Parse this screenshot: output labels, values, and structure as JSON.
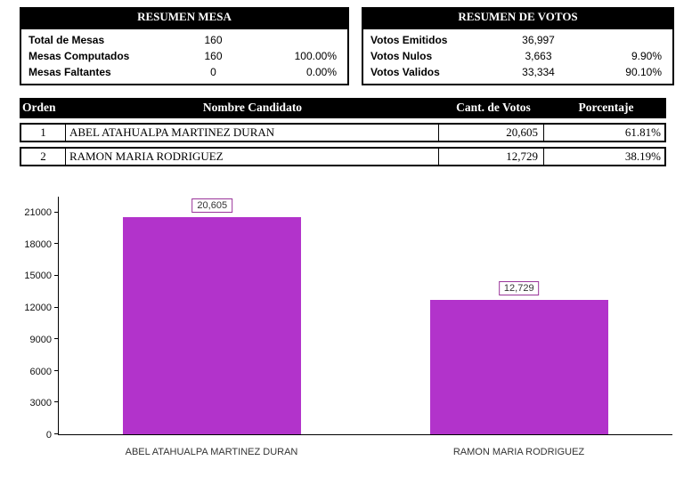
{
  "resumen_mesa": {
    "title": "RESUMEN MESA",
    "rows": [
      {
        "label": "Total  de Mesas",
        "value": "160",
        "pct": ""
      },
      {
        "label": "Mesas Computados",
        "value": "160",
        "pct": "100.00%"
      },
      {
        "label": "Mesas Faltantes",
        "value": "0",
        "pct": "0.00%"
      }
    ]
  },
  "resumen_votos": {
    "title": "RESUMEN DE VOTOS",
    "rows": [
      {
        "label": "Votos Emitidos",
        "value": "36,997",
        "pct": ""
      },
      {
        "label": "Votos Nulos",
        "value": "3,663",
        "pct": "9.90%"
      },
      {
        "label": "Votos Validos",
        "value": "33,334",
        "pct": "90.10%"
      }
    ]
  },
  "candidates": {
    "headers": [
      "Orden",
      "Nombre Candidato",
      "Cant. de Votos",
      "Porcentaje"
    ],
    "rows": [
      {
        "orden": "1",
        "name": "ABEL ATAHUALPA MARTINEZ DURAN",
        "votes": "20,605",
        "pct": "61.81%"
      },
      {
        "orden": "2",
        "name": "RAMON MARIA RODRIGUEZ",
        "votes": "12,729",
        "pct": "38.19%"
      }
    ]
  },
  "chart_data": {
    "type": "bar",
    "title": "",
    "categories": [
      "ABEL ATAHUALPA MARTINEZ DURAN",
      "RAMON MARIA RODRIGUEZ"
    ],
    "values": [
      20605,
      12729
    ],
    "value_labels": [
      "20,605",
      "12,729"
    ],
    "y_ticks": [
      0,
      3000,
      6000,
      9000,
      12000,
      15000,
      18000,
      21000
    ],
    "ylim": [
      0,
      22500
    ],
    "xlabel": "",
    "ylabel": "",
    "grid": false,
    "legend": false,
    "bar_color": "#b233cb",
    "label_box_border": "#993399"
  }
}
